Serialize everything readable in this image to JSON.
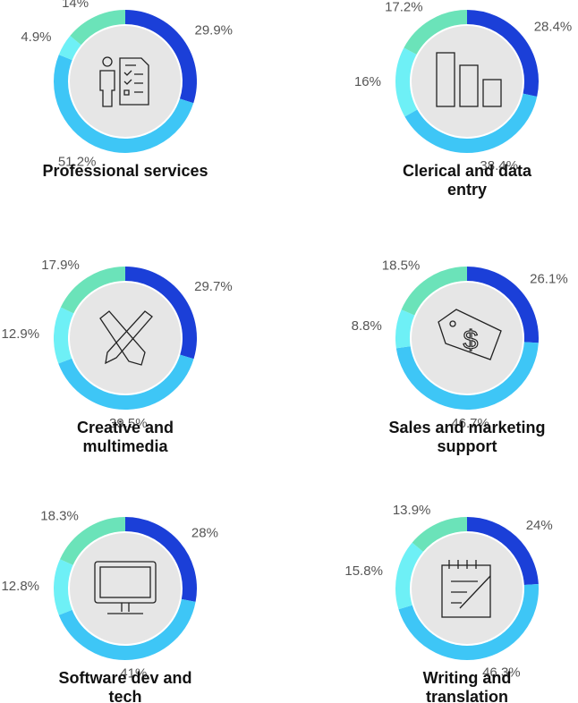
{
  "chart_data": [
    {
      "type": "donut",
      "title": "Professional services",
      "values": [
        29.9,
        51.2,
        4.9,
        14
      ],
      "value_labels": [
        "29.9%",
        "51.2%",
        "4.9%",
        "14%"
      ],
      "colors": [
        "#1b3fd8",
        "#3ec6f6",
        "#6ef0f6",
        "#6be3b9"
      ]
    },
    {
      "type": "donut",
      "title": "Clerical and data entry",
      "values": [
        28.4,
        38.4,
        16,
        17.2
      ],
      "value_labels": [
        "28.4%",
        "38.4%",
        "16%",
        "17.2%"
      ],
      "colors": [
        "#1b3fd8",
        "#3ec6f6",
        "#6ef0f6",
        "#6be3b9"
      ]
    },
    {
      "type": "donut",
      "title": "Creative and multimedia",
      "values": [
        29.7,
        39.5,
        12.9,
        17.9
      ],
      "value_labels": [
        "29.7%",
        "39.5%",
        "12.9%",
        "17.9%"
      ],
      "colors": [
        "#1b3fd8",
        "#3ec6f6",
        "#6ef0f6",
        "#6be3b9"
      ]
    },
    {
      "type": "donut",
      "title": "Sales and marketing support",
      "values": [
        26.1,
        46.7,
        8.8,
        18.5
      ],
      "value_labels": [
        "26.1%",
        "46.7%",
        "8.8%",
        "18.5%"
      ],
      "colors": [
        "#1b3fd8",
        "#3ec6f6",
        "#6ef0f6",
        "#6be3b9"
      ]
    },
    {
      "type": "donut",
      "title": "Software dev and tech",
      "values": [
        28,
        41,
        12.8,
        18.3
      ],
      "value_labels": [
        "28%",
        "41%",
        "12.8%",
        "18.3%"
      ],
      "colors": [
        "#1b3fd8",
        "#3ec6f6",
        "#6ef0f6",
        "#6be3b9"
      ]
    },
    {
      "type": "donut",
      "title": "Writing and translation",
      "values": [
        24,
        46.3,
        15.8,
        13.9
      ],
      "value_labels": [
        "24%",
        "46.3%",
        "15.8%",
        "13.9%"
      ],
      "colors": [
        "#1b3fd8",
        "#3ec6f6",
        "#6ef0f6",
        "#6be3b9"
      ]
    }
  ]
}
